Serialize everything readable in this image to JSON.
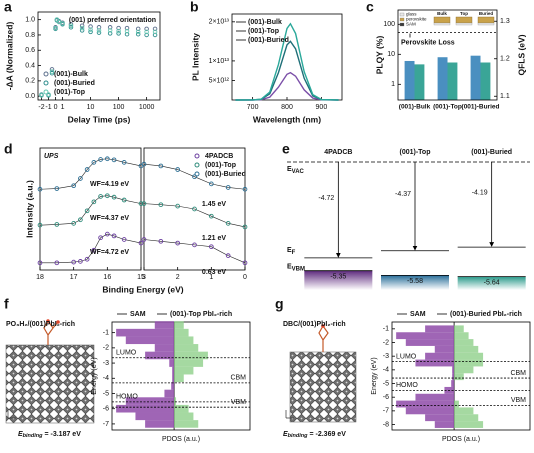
{
  "chart_data": [
    {
      "type": "scatter",
      "label": "a",
      "annotation": "(001) preferred orientation",
      "xlabel": "Delay Time (ps)",
      "ylabel": "-ΔA (Normalized)",
      "xscale": "symlog",
      "xlim": [
        -2.5,
        3000
      ],
      "xticks": [
        -2,
        -1,
        0,
        1,
        10,
        100,
        1000
      ],
      "ylim": [
        -0.05,
        1.1
      ],
      "yticks": [
        {
          "value": 0,
          "label": "0.0"
        },
        0.2,
        0.4,
        0.6,
        0.8,
        {
          "value": 1,
          "label": "1.0"
        }
      ],
      "legend": "lower left",
      "x": [
        -2,
        -1,
        -0.5,
        0,
        0.2,
        0.5,
        1,
        2,
        5,
        10,
        20,
        50,
        100,
        200,
        500,
        1000,
        2000
      ],
      "series": [
        {
          "name": "(001)-Bulk",
          "color": "#5b6e8c",
          "values": [
            0.01,
            0.02,
            0.35,
            0.9,
            1.0,
            0.98,
            0.96,
            0.94,
            0.92,
            0.91,
            0.9,
            0.9,
            0.89,
            0.89,
            0.88,
            0.88,
            0.88
          ]
        },
        {
          "name": "(001)-Buried",
          "color": "#2c8c8c",
          "values": [
            0.02,
            0.01,
            0.3,
            0.88,
            0.99,
            0.97,
            0.94,
            0.9,
            0.86,
            0.84,
            0.83,
            0.82,
            0.82,
            0.81,
            0.81,
            0.8,
            0.8
          ]
        },
        {
          "name": "(001)-Top",
          "color": "#66c9b3",
          "values": [
            0.01,
            0.02,
            0.32,
            0.89,
            1.0,
            0.97,
            0.95,
            0.92,
            0.89,
            0.87,
            0.86,
            0.86,
            0.85,
            0.85,
            0.84,
            0.84,
            0.84
          ]
        }
      ]
    },
    {
      "type": "line",
      "label": "b",
      "xlabel": "Wavelength (nm)",
      "ylabel": "PL Intensity",
      "xlim": [
        640,
        960
      ],
      "xticks": [
        700,
        800,
        900
      ],
      "ylim": [
        0,
        22000000000000.0
      ],
      "yticks": [
        {
          "value": 5000000000000.0,
          "label": "5×10¹²"
        },
        {
          "value": 10000000000000.0,
          "label": "1×10¹³"
        },
        {
          "value": 20000000000000.0,
          "label": "2×10¹³"
        }
      ],
      "legend": "upper left",
      "x": [
        650,
        700,
        725,
        750,
        775,
        800,
        810,
        825,
        850,
        875,
        900,
        950
      ],
      "series": [
        {
          "name": "(001)-Bulk",
          "color": "#7b4fa8",
          "values": [
            0,
            3500000000.0,
            77000000000.0,
            735000000000.0,
            3260000000000.0,
            6580000000000.0,
            7000000000000.0,
            6090000000000.0,
            2590000000000.0,
            497000000000.0,
            42000000000.0,
            0
          ]
        },
        {
          "name": "(001)-Top",
          "color": "#1f6f78",
          "values": [
            0,
            7500000000.0,
            165000000000.0,
            1580000000000.0,
            6980000000000.0,
            14100000000000.0,
            15000000000000.0,
            13100000000000.0,
            5550000000000.0,
            1070000000000.0,
            90000000000.0,
            0
          ]
        },
        {
          "name": "(001)-Buried",
          "color": "#2aa89a",
          "values": [
            0,
            9800000000.0,
            215000000000.0,
            2050000000000.0,
            9070000000000.0,
            18300000000000.0,
            19500000000000.0,
            17000000000000.0,
            7220000000000.0,
            1380000000000.0,
            117000000000.0,
            0
          ]
        }
      ]
    },
    {
      "type": "bar",
      "label": "c",
      "categories": [
        "(001)-Bulk",
        "(001)-Top",
        "(001)-Buried"
      ],
      "ylabel": "PLQY (%)",
      "y2label": "QFLS (eV)",
      "ylog": true,
      "ylim": [
        0.3,
        300
      ],
      "yticks": [
        1,
        10,
        100
      ],
      "y2lim": [
        1.09,
        1.33
      ],
      "y2ticks": [
        1.1,
        1.2,
        1.3
      ],
      "series": [
        {
          "color": "#4a8fc0",
          "values": [
            6,
            8,
            9
          ]
        },
        {
          "color": "#3aa597",
          "axis": "y2",
          "values": [
            1.185,
            1.19,
            1.19
          ]
        }
      ],
      "reference_line": 1.27,
      "annotation": "Perovskite Loss",
      "inset_labels": [
        "glass",
        "perovskite",
        "SAM",
        "Bulk",
        "Top",
        "Buried"
      ]
    },
    {
      "type": "line",
      "label": "d",
      "title": "UPS",
      "ylabel": "Intensity (a.u.)",
      "xlabel": "Binding Energy (eV)",
      "markers": true,
      "xlim": [
        18,
        15
      ],
      "xticks": [
        18,
        17,
        16,
        15
      ],
      "ylim": [
        -0.1,
        3.3
      ],
      "annotations": [
        "WF=4.19 eV",
        "WF=4.37 eV",
        "WF=4.72 eV"
      ],
      "x": [
        18,
        17.5,
        17,
        16.8,
        16.6,
        16.4,
        16.2,
        16,
        15.8,
        15.5,
        15
      ],
      "series": [
        {
          "color": "#6b3fa0",
          "values": [
            0.1,
            0.1,
            0.12,
            0.14,
            0.2,
            0.45,
            0.8,
            0.9,
            0.85,
            0.75,
            0.65
          ]
        },
        {
          "color": "#2e8b7a",
          "values": [
            1.15,
            1.17,
            1.2,
            1.3,
            1.55,
            1.8,
            1.95,
            1.97,
            1.93,
            1.85,
            1.75
          ]
        },
        {
          "color": "#2c6f94",
          "values": [
            2.15,
            2.17,
            2.25,
            2.45,
            2.7,
            2.9,
            2.98,
            3.0,
            2.97,
            2.9,
            2.8
          ]
        }
      ]
    },
    {
      "type": "line",
      "markers": true,
      "xlim": [
        3,
        0
      ],
      "xticks": [
        3,
        2,
        1,
        0
      ],
      "ylim": [
        -0.1,
        3.3
      ],
      "legend": "upper right",
      "annotations": [
        "1.45 eV",
        "1.21 eV",
        "0.63 eV"
      ],
      "x": [
        3,
        2.5,
        2,
        1.5,
        1,
        0.5,
        0
      ],
      "series": [
        {
          "name": "4PADCB",
          "color": "#6b3fa0",
          "values": [
            0.75,
            0.7,
            0.65,
            0.6,
            0.55,
            0.3,
            0.1
          ]
        },
        {
          "name": "(001)-Top",
          "color": "#2e8b7a",
          "values": [
            1.75,
            1.72,
            1.68,
            1.6,
            1.4,
            1.2,
            1.1
          ]
        },
        {
          "name": "(001)-Buried",
          "color": "#2c6f94",
          "values": [
            2.85,
            2.8,
            2.7,
            2.5,
            2.3,
            2.2,
            2.15
          ]
        }
      ]
    },
    {
      "type": "energy-level",
      "label": "e",
      "columns": [
        "4PADCB",
        "(001)-Top",
        "(001)-Buried"
      ],
      "ylim": [
        -6.3,
        0
      ],
      "ef": [
        -4.72,
        -4.37,
        -4.19
      ],
      "vbm": [
        -5.35,
        -5.58,
        -5.64
      ],
      "colors": [
        "#5e2a7e",
        "#2a6f9a",
        "#2a9a8a"
      ],
      "level_labels": [
        {
          "main": "E",
          "sub": "VAC"
        },
        {
          "main": "E",
          "sub": "F"
        },
        {
          "main": "E",
          "sub": "VBM"
        }
      ]
    },
    {
      "type": "pdos",
      "label": "f",
      "title": "PO₃H₂/(001)PbI₂-rich",
      "legend": [
        "SAM",
        "(001)-Top PbI₂-rich"
      ],
      "ylabel": "Energy (eV)",
      "xlabel": "PDOS (a.u.)",
      "ylim": [
        -7.4,
        -0.3
      ],
      "yticks": [
        -1,
        -2,
        -3,
        -4,
        -5,
        -6,
        -7
      ],
      "colors": [
        "#8e4aa8",
        "#8fd08a"
      ],
      "energy": [
        -7,
        -6.5,
        -6,
        -5.5,
        -5,
        -4.5,
        -4,
        -3.5,
        -3,
        -2.5,
        -2,
        -1.5,
        -1,
        -0.5
      ],
      "sam": [
        3,
        4,
        6,
        5,
        1,
        0.3,
        0.2,
        0.2,
        0.5,
        3,
        2,
        5,
        6,
        2
      ],
      "perovskite": [
        2.5,
        2,
        1.5,
        0.2,
        0,
        0,
        1,
        2,
        3,
        3.5,
        2.5,
        2,
        1.5,
        1
      ],
      "levels": [
        {
          "name": "LUMO",
          "value": -2.65
        },
        {
          "name": "HOMO",
          "value": -5.55
        },
        {
          "name": "CBM",
          "value": -4.3
        },
        {
          "name": "VBM",
          "value": -5.9
        }
      ],
      "binding": {
        "symbol": "E",
        "sub": "binding",
        "rest": " = -3.187 eV"
      }
    },
    {
      "type": "pdos",
      "label": "g",
      "title": "DBC/(001)PbI₂-rich",
      "legend": [
        "SAM",
        "(001)-Buried PbI₂-rich"
      ],
      "ylabel": "Energy (eV)",
      "xlabel": "PDOS (a.u.)",
      "ylim": [
        -8.4,
        -0.5
      ],
      "yticks": [
        -1,
        -2,
        -3,
        -4,
        -5,
        -6,
        -7,
        -8
      ],
      "colors": [
        "#8e4aa8",
        "#8fd08a"
      ],
      "energy": [
        -8,
        -7.5,
        -7,
        -6.5,
        -6,
        -5.5,
        -5,
        -4.5,
        -4,
        -3.5,
        -3,
        -2.5,
        -2,
        -1.5,
        -1
      ],
      "sam": [
        2,
        3,
        5,
        6,
        4,
        1,
        0.3,
        0.2,
        0.2,
        4,
        3,
        2,
        5,
        6,
        3
      ],
      "perovskite": [
        3,
        2.5,
        2,
        0.5,
        0,
        0,
        0,
        1,
        2,
        3,
        3,
        2.5,
        2,
        1.5,
        1
      ],
      "levels": [
        {
          "name": "LUMO",
          "value": -3.4
        },
        {
          "name": "HOMO",
          "value": -5.5
        },
        {
          "name": "CBM",
          "value": -4.6
        },
        {
          "name": "VBM",
          "value": -6.6
        }
      ],
      "binding": {
        "symbol": "E",
        "sub": "binding",
        "rest": " = -2.369 eV"
      }
    }
  ]
}
